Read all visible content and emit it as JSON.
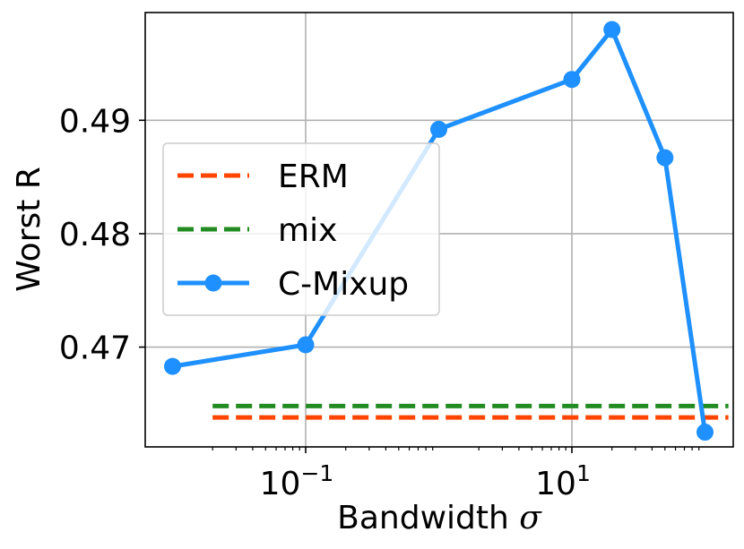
{
  "chart_data": {
    "type": "line",
    "xlabel": "Bandwidth",
    "xlabel_symbol": "σ",
    "ylabel": "Worst R",
    "x_scale": "log",
    "xlim": [
      0.02,
      150
    ],
    "ylim": [
      0.4612,
      0.4995
    ],
    "grid": true,
    "legend_position": "center-left",
    "x_ticks": [
      {
        "value": 0.1,
        "base": "10",
        "exp": "−1"
      },
      {
        "value": 10,
        "base": "10",
        "exp": "1"
      }
    ],
    "y_ticks": [
      {
        "value": 0.47,
        "label": "0.47"
      },
      {
        "value": 0.48,
        "label": "0.48"
      },
      {
        "value": 0.49,
        "label": "0.49"
      }
    ],
    "series": [
      {
        "name": "ERM",
        "style": "dashed",
        "color": "#ff4500",
        "x": [
          0.02,
          150
        ],
        "y": [
          0.4638,
          0.4638
        ]
      },
      {
        "name": "mix",
        "style": "dashed",
        "color": "#228b22",
        "x": [
          0.02,
          150
        ],
        "y": [
          0.4648,
          0.4648
        ]
      },
      {
        "name": "C-Mixup",
        "style": "line-marker",
        "color": "#1e90ff",
        "x": [
          0.01,
          0.1,
          1,
          10,
          20,
          50,
          100
        ],
        "y": [
          0.4683,
          0.4702,
          0.4892,
          0.4936,
          0.498,
          0.4867,
          0.4625
        ]
      }
    ]
  }
}
